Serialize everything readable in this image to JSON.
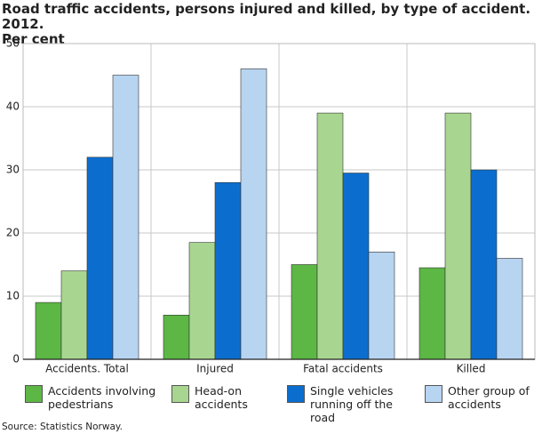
{
  "chart_data": {
    "type": "bar",
    "title": "Road traffic accidents, persons injured and killed, by type of accident. 2012.",
    "subtitle": "Per cent",
    "categories": [
      "Accidents. Total",
      "Injured",
      "Fatal accidents",
      "Killed"
    ],
    "series": [
      {
        "name": "Accidents involving pedestrians",
        "color": "#5cb745",
        "values": [
          9,
          7,
          15,
          14.5
        ]
      },
      {
        "name": "Head-on accidents",
        "color": "#a8d690",
        "values": [
          14,
          18.5,
          39,
          39
        ]
      },
      {
        "name": "Single vehicles running off the road",
        "color": "#0b6ecf",
        "values": [
          32,
          28,
          29.5,
          30
        ]
      },
      {
        "name": "Other group of accidents",
        "color": "#b7d4f1",
        "values": [
          45,
          46,
          17,
          16
        ]
      }
    ],
    "ylim": [
      0,
      50
    ],
    "yticks": [
      0,
      10,
      20,
      30,
      40,
      50
    ],
    "grid": true,
    "source": "Source: Statistics Norway."
  }
}
